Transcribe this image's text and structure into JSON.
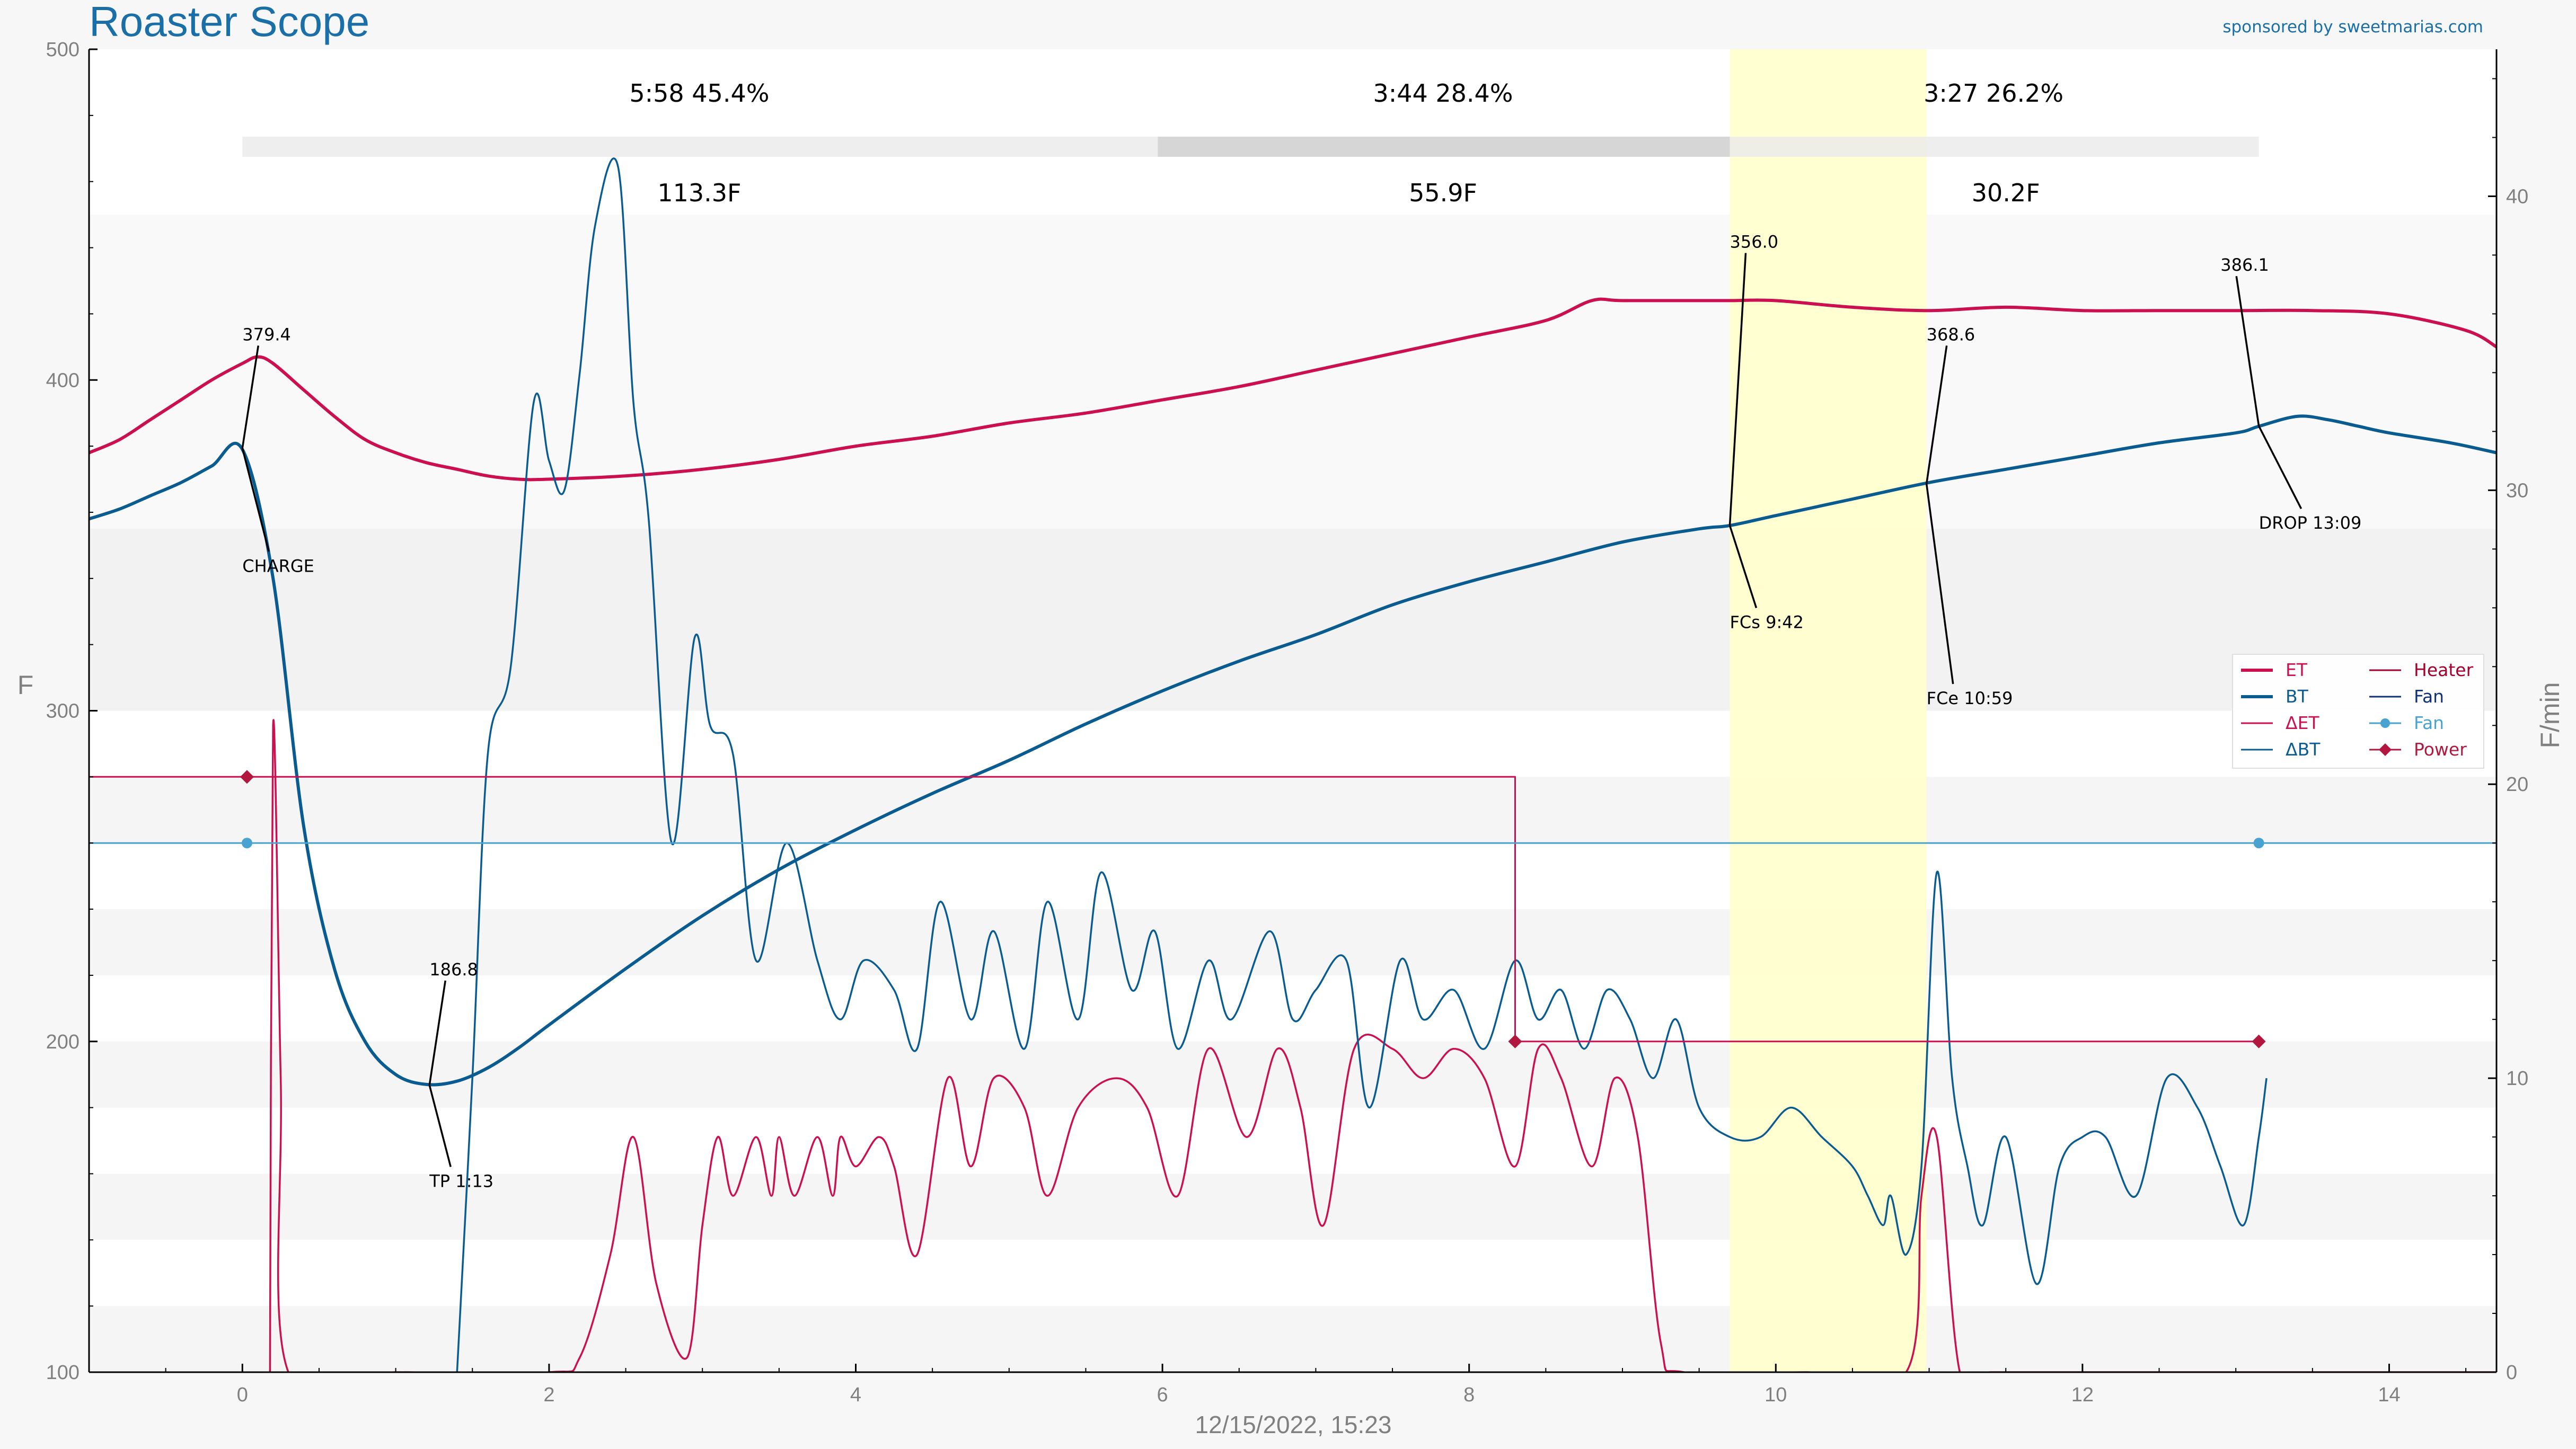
{
  "app": {
    "title": "Roaster Scope",
    "sponsor": "sponsored by sweetmarias.com",
    "timestamp": "12/15/2022, 15:23"
  },
  "colors": {
    "et": "#cc0f50",
    "bt": "#0a5c90",
    "det": "#cc0f50",
    "dbt": "#0a5c90",
    "heater": "#cc0f50",
    "fan_setting": "#49a3d1",
    "power": "#b2183f",
    "fc_band": "#ffffcc",
    "title": "#1a6fa8"
  },
  "chart_data": {
    "type": "line",
    "title": "Roaster Scope",
    "xlabel": "12/15/2022, 15:23",
    "ylabel_left": "F",
    "ylabel_right": "F/min",
    "xlim": [
      -1,
      14.7
    ],
    "ylim_left": [
      100,
      500
    ],
    "ylim_right": [
      0,
      45
    ],
    "x_ticks": [
      0,
      2,
      4,
      6,
      8,
      10,
      12,
      14
    ],
    "y_ticks_left": [
      100,
      200,
      300,
      400,
      500
    ],
    "y_ticks_right": [
      0,
      10,
      20,
      30,
      40
    ],
    "grid": false,
    "legend_position": "right",
    "legend": [
      {
        "label": "ET",
        "key": "et",
        "style": "thick"
      },
      {
        "label": "BT",
        "key": "bt",
        "style": "thick"
      },
      {
        "label": "ΔET",
        "key": "det",
        "style": "thin"
      },
      {
        "label": "ΔBT",
        "key": "dbt",
        "style": "thin"
      },
      {
        "label": "Heater",
        "key": "heater",
        "style": "thin"
      },
      {
        "label": "Fan",
        "key": "bt",
        "style": "thin"
      },
      {
        "label": "Fan",
        "key": "fan_setting",
        "style": "dot"
      },
      {
        "label": "Power",
        "key": "power",
        "style": "diamond"
      }
    ],
    "fc_band": {
      "x_start": 9.7,
      "x_end": 10.983
    },
    "phases": {
      "bar_start": 0,
      "bar_end": 13.15,
      "dry_end": 5.97,
      "maillard_end": 9.7,
      "dry_label": "5:58  45.4%",
      "maillard_label": "3:44  28.4%",
      "development_label": "3:27  26.2%",
      "dry_rise": "113.3F",
      "maillard_rise": "55.9F",
      "development_rise": "30.2F"
    },
    "series": [
      {
        "name": "ET",
        "axis": "left",
        "x": [
          -1,
          -0.8,
          -0.6,
          -0.4,
          -0.2,
          0,
          0.1,
          0.2,
          0.4,
          0.6,
          0.8,
          1.0,
          1.2,
          1.4,
          1.6,
          1.8,
          2.0,
          2.5,
          3.0,
          3.5,
          4.0,
          4.5,
          5.0,
          5.5,
          6.0,
          6.5,
          7.0,
          7.5,
          8.0,
          8.5,
          8.8,
          9.0,
          9.5,
          9.7,
          10.0,
          10.5,
          11.0,
          11.5,
          12.0,
          12.5,
          13.0,
          13.5,
          14.0,
          14.5,
          14.7
        ],
        "y": [
          378,
          382,
          388,
          394,
          400,
          405,
          407,
          405,
          397,
          389,
          382,
          378,
          375,
          373,
          371,
          370,
          370,
          371,
          373,
          376,
          380,
          383,
          387,
          390,
          394,
          398,
          403,
          408,
          413,
          418,
          424,
          424,
          424,
          424,
          424,
          422,
          421,
          422,
          421,
          421,
          421,
          421,
          420,
          415,
          410
        ]
      },
      {
        "name": "BT",
        "axis": "left",
        "x": [
          -1,
          -0.8,
          -0.6,
          -0.4,
          -0.2,
          0,
          0.2,
          0.4,
          0.6,
          0.8,
          1.0,
          1.2,
          1.4,
          1.6,
          1.8,
          2.0,
          2.5,
          3.0,
          3.5,
          4.0,
          4.5,
          5.0,
          5.5,
          6.0,
          6.5,
          7.0,
          7.5,
          8.0,
          8.5,
          9.0,
          9.5,
          9.7,
          10.0,
          10.5,
          11.0,
          11.5,
          12.0,
          12.5,
          13.0,
          13.15,
          13.4,
          13.6,
          13.8,
          14.0,
          14.4,
          14.7
        ],
        "y": [
          358,
          361,
          365,
          369,
          374,
          379,
          340,
          265,
          222,
          200,
          190,
          187,
          188,
          192,
          198,
          205,
          222,
          238,
          252,
          264,
          275,
          285,
          296,
          306,
          315,
          323,
          332,
          339,
          345,
          351,
          355,
          356,
          359,
          364,
          369,
          373,
          377,
          381,
          384,
          386,
          389,
          388,
          386,
          384,
          381,
          378
        ]
      },
      {
        "name": "ΔET",
        "axis": "right",
        "x": [
          0.18,
          0.2,
          0.25,
          0.3,
          1.0,
          2.0,
          2.2,
          2.4,
          2.55,
          2.7,
          2.9,
          3.0,
          3.1,
          3.2,
          3.35,
          3.45,
          3.5,
          3.6,
          3.75,
          3.85,
          3.9,
          4.0,
          4.15,
          4.25,
          4.4,
          4.6,
          4.75,
          4.9,
          5.1,
          5.25,
          5.45,
          5.7,
          5.9,
          6.1,
          6.3,
          6.55,
          6.75,
          6.9,
          7.05,
          7.25,
          7.5,
          7.7,
          7.9,
          8.1,
          8.3,
          8.45,
          8.6,
          8.8,
          8.95,
          9.1,
          9.25,
          9.4,
          10.2,
          10.85,
          10.95,
          11.05,
          11.2,
          11.4,
          12.0,
          13.15,
          14.7
        ],
        "y": [
          0,
          22,
          10,
          0,
          0,
          0,
          0.5,
          4,
          8,
          3,
          0.5,
          5,
          8,
          6,
          8,
          6,
          8,
          6,
          8,
          6,
          8,
          7,
          8,
          7,
          4,
          10,
          7,
          10,
          9,
          6,
          9,
          10,
          9,
          6,
          11,
          8,
          11,
          9,
          5,
          11,
          11,
          10,
          11,
          10,
          7,
          11,
          10,
          7,
          10,
          8,
          1,
          0,
          0,
          0,
          6,
          8,
          0,
          0,
          0,
          0,
          0
        ]
      },
      {
        "name": "ΔBT",
        "axis": "right",
        "x": [
          1.4,
          1.5,
          1.6,
          1.75,
          1.9,
          2.0,
          2.1,
          2.2,
          2.3,
          2.45,
          2.55,
          2.65,
          2.8,
          2.95,
          3.05,
          3.2,
          3.35,
          3.55,
          3.75,
          3.9,
          4.05,
          4.25,
          4.4,
          4.55,
          4.75,
          4.9,
          5.1,
          5.25,
          5.45,
          5.6,
          5.8,
          5.95,
          6.1,
          6.3,
          6.45,
          6.7,
          6.85,
          7.0,
          7.2,
          7.35,
          7.55,
          7.7,
          7.9,
          8.1,
          8.3,
          8.45,
          8.6,
          8.75,
          8.9,
          9.05,
          9.2,
          9.35,
          9.5,
          9.7,
          9.9,
          10.1,
          10.3,
          10.5,
          10.6,
          10.7,
          10.75,
          10.85,
          10.95,
          11.05,
          11.15,
          11.25,
          11.35,
          11.5,
          11.7,
          11.85,
          12.0,
          12.15,
          12.35,
          12.55,
          12.75,
          12.9,
          13.05,
          13.15,
          13.2
        ],
        "y": [
          0,
          10,
          21,
          24,
          33,
          31,
          30,
          34,
          39,
          41,
          33,
          29,
          18,
          25,
          22,
          21,
          14,
          18,
          14,
          12,
          14,
          13,
          11,
          16,
          12,
          15,
          11,
          16,
          12,
          17,
          13,
          15,
          11,
          14,
          12,
          15,
          12,
          13,
          14,
          9,
          14,
          12,
          13,
          11,
          14,
          12,
          13,
          11,
          13,
          12,
          10,
          12,
          9,
          8,
          8,
          9,
          8,
          7,
          6,
          5,
          6,
          4,
          7,
          17,
          10,
          7,
          5,
          8,
          3,
          7,
          8,
          8,
          6,
          10,
          9,
          7,
          5,
          8,
          10
        ]
      },
      {
        "name": "Heater",
        "axis": "left",
        "x": [
          -1,
          0.03,
          8.3,
          8.3,
          13.15
        ],
        "y": [
          280,
          280,
          280,
          200,
          200
        ]
      },
      {
        "name": "Fan",
        "axis": "left",
        "x": [
          -1,
          0.03,
          13.15,
          14.7
        ],
        "y": [
          260,
          260,
          260,
          260
        ]
      }
    ],
    "fan_markers": [
      {
        "x": 0.03,
        "y": 260
      },
      {
        "x": 13.15,
        "y": 260
      }
    ],
    "power_markers": [
      {
        "x": 0.03,
        "y": 280
      },
      {
        "x": 8.3,
        "y": 200
      },
      {
        "x": 13.15,
        "y": 200
      }
    ],
    "events": [
      {
        "x": 0,
        "y": 379.4,
        "value": "379.4",
        "label": "CHARGE"
      },
      {
        "x": 1.22,
        "y": 186.8,
        "value": "186.8",
        "label": "TP 1:13"
      },
      {
        "x": 9.7,
        "y": 356.0,
        "value": "356.0",
        "label": "FCs 9:42"
      },
      {
        "x": 10.983,
        "y": 368.6,
        "value": "368.6",
        "label": "FCe 10:59"
      },
      {
        "x": 13.15,
        "y": 386.1,
        "value": "386.1",
        "label": "DROP 13:09"
      }
    ]
  }
}
